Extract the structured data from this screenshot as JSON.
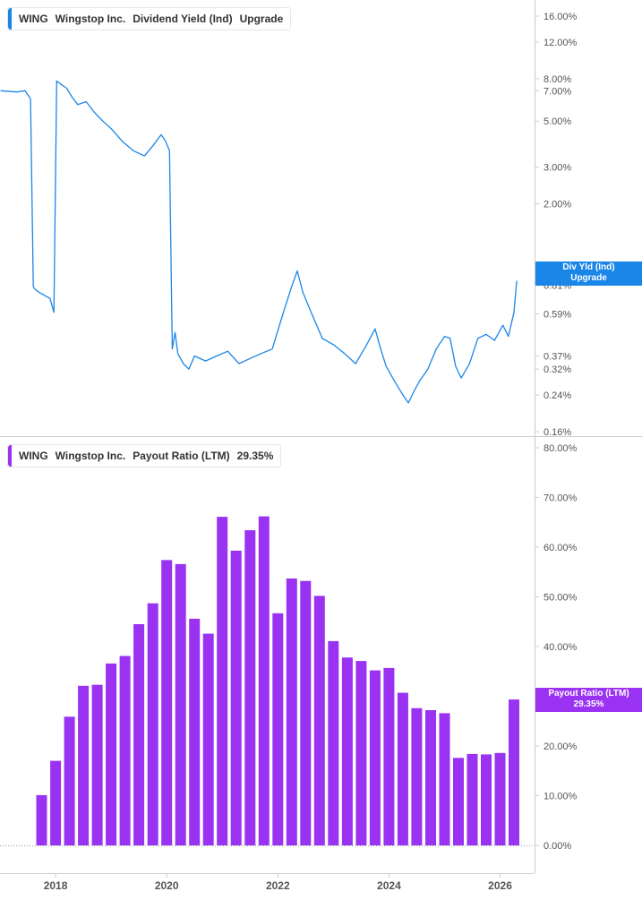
{
  "colors": {
    "dividend_line": "#1a86e8",
    "payout_bar": "#9a32f2",
    "axis_text": "#555555",
    "grid_border": "#cccccc"
  },
  "legend_top": {
    "ticker": "WING",
    "company": "Wingstop Inc.",
    "metric": "Dividend Yield (Ind)",
    "value": "Upgrade"
  },
  "legend_bottom": {
    "ticker": "WING",
    "company": "Wingstop Inc.",
    "metric": "Payout Ratio (LTM)",
    "value": "29.35%"
  },
  "flag_top": {
    "line1": "Div Yld (Ind)",
    "line2": "Upgrade"
  },
  "flag_bottom": {
    "line1": "Payout Ratio (LTM)",
    "line2": "29.35%"
  },
  "x_axis": {
    "ticks": [
      {
        "label": "2018",
        "x": 2018.0
      },
      {
        "label": "2020",
        "x": 2020.0
      },
      {
        "label": "2022",
        "x": 2022.0
      },
      {
        "label": "2024",
        "x": 2024.0
      },
      {
        "label": "2026",
        "x": 2026.0
      }
    ]
  },
  "chart_data": [
    {
      "type": "line",
      "scale": "log",
      "y_axis_ticks": [
        {
          "label": "16.00%",
          "value": 16
        },
        {
          "label": "12.00%",
          "value": 12
        },
        {
          "label": "8.00%",
          "value": 8
        },
        {
          "label": "7.00%",
          "value": 7
        },
        {
          "label": "5.00%",
          "value": 5
        },
        {
          "label": "3.00%",
          "value": 3
        },
        {
          "label": "2.00%",
          "value": 2
        },
        {
          "label": "0.81%",
          "value": 0.81
        },
        {
          "label": "0.59%",
          "value": 0.59
        },
        {
          "label": "0.37%",
          "value": 0.37
        },
        {
          "label": "0.32%",
          "value": 0.32
        },
        {
          "label": "0.24%",
          "value": 0.24
        },
        {
          "label": "0.16%",
          "value": 0.16
        }
      ],
      "x": [
        2017.01,
        2017.3,
        2017.45,
        2017.55,
        2017.6,
        2017.62,
        2017.7,
        2017.9,
        2017.97,
        2018.02,
        2018.1,
        2018.2,
        2018.3,
        2018.4,
        2018.55,
        2018.7,
        2018.85,
        2019.0,
        2019.2,
        2019.4,
        2019.6,
        2019.75,
        2019.9,
        2019.98,
        2020.05,
        2020.1,
        2020.15,
        2020.2,
        2020.3,
        2020.4,
        2020.5,
        2020.7,
        2020.9,
        2021.1,
        2021.3,
        2021.5,
        2021.7,
        2021.9,
        2022.1,
        2022.25,
        2022.35,
        2022.45,
        2022.6,
        2022.8,
        2023.0,
        2023.2,
        2023.4,
        2023.6,
        2023.75,
        2023.85,
        2023.95,
        2024.1,
        2024.25,
        2024.35,
        2024.45,
        2024.55,
        2024.7,
        2024.85,
        2025.0,
        2025.1,
        2025.2,
        2025.3,
        2025.45,
        2025.6,
        2025.75,
        2025.9,
        2026.05,
        2026.15,
        2026.25,
        2026.3
      ],
      "y": [
        7.0,
        6.9,
        7.0,
        6.4,
        0.8,
        0.78,
        0.75,
        0.7,
        0.6,
        7.8,
        7.5,
        7.2,
        6.5,
        6.0,
        6.2,
        5.5,
        5.0,
        4.6,
        4.0,
        3.6,
        3.4,
        3.8,
        4.3,
        4.0,
        3.6,
        0.4,
        0.48,
        0.38,
        0.34,
        0.32,
        0.37,
        0.35,
        0.37,
        0.39,
        0.34,
        0.36,
        0.38,
        0.4,
        0.6,
        0.8,
        0.95,
        0.75,
        0.6,
        0.45,
        0.42,
        0.38,
        0.34,
        0.42,
        0.5,
        0.4,
        0.33,
        0.28,
        0.24,
        0.22,
        0.25,
        0.28,
        0.32,
        0.4,
        0.46,
        0.45,
        0.33,
        0.29,
        0.34,
        0.45,
        0.47,
        0.44,
        0.52,
        0.46,
        0.6,
        0.85
      ],
      "ylim": [
        0.16,
        19
      ]
    },
    {
      "type": "bar",
      "y_axis_ticks": [
        {
          "label": "80.00%",
          "value": 80
        },
        {
          "label": "70.00%",
          "value": 70
        },
        {
          "label": "60.00%",
          "value": 60
        },
        {
          "label": "50.00%",
          "value": 50
        },
        {
          "label": "40.00%",
          "value": 40
        },
        {
          "label": "20.00%",
          "value": 20
        },
        {
          "label": "10.00%",
          "value": 10
        },
        {
          "label": "0.00%",
          "value": 0
        }
      ],
      "x": [
        2017.75,
        2018.0,
        2018.25,
        2018.5,
        2018.75,
        2019.0,
        2019.25,
        2019.5,
        2019.75,
        2020.0,
        2020.25,
        2020.5,
        2020.75,
        2021.0,
        2021.25,
        2021.5,
        2021.75,
        2022.0,
        2022.25,
        2022.5,
        2022.75,
        2023.0,
        2023.25,
        2023.5,
        2023.75,
        2024.0,
        2024.25,
        2024.5,
        2024.75,
        2025.0,
        2025.25,
        2025.5,
        2025.75,
        2026.0,
        2026.25
      ],
      "values": [
        10.1,
        17.0,
        25.9,
        32.1,
        32.3,
        36.6,
        38.1,
        44.5,
        48.7,
        57.4,
        56.6,
        45.6,
        42.6,
        66.1,
        59.3,
        63.4,
        66.2,
        46.7,
        53.7,
        53.2,
        50.2,
        41.1,
        37.8,
        37.1,
        35.2,
        35.7,
        30.7,
        27.6,
        27.2,
        26.6,
        17.6,
        18.4,
        18.3,
        18.6,
        29.35
      ],
      "ylim": [
        0,
        80
      ]
    }
  ]
}
